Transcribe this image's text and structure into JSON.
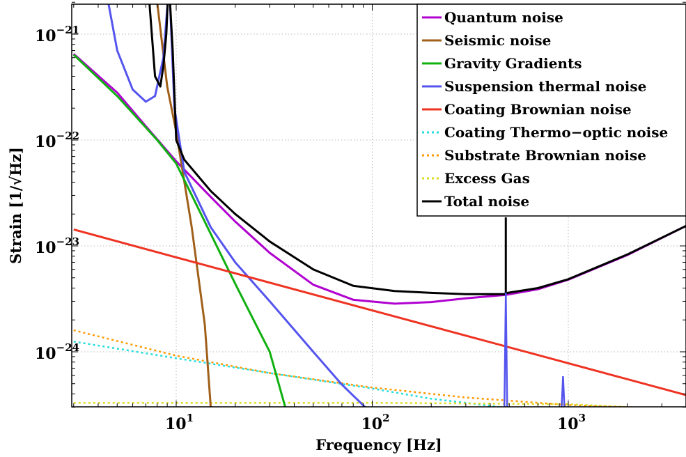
{
  "chart_data": {
    "type": "line",
    "xlabel": "Frequency [Hz]",
    "ylabel": "Strain [1/√Hz]",
    "xscale": "log",
    "yscale": "log",
    "xlim": [
      3,
      4000
    ],
    "ylim": [
      3e-25,
      2e-21
    ],
    "xticks": [
      {
        "value": 10,
        "base": "10",
        "exp": "1"
      },
      {
        "value": 100,
        "base": "10",
        "exp": "2"
      },
      {
        "value": 1000,
        "base": "10",
        "exp": "3"
      }
    ],
    "yticks": [
      {
        "value": 1e-24,
        "base": "10",
        "exp": "−24"
      },
      {
        "value": 1e-23,
        "base": "10",
        "exp": "−23"
      },
      {
        "value": 1e-22,
        "base": "10",
        "exp": "−22"
      },
      {
        "value": 1e-21,
        "base": "10",
        "exp": "−21"
      }
    ],
    "grid": true,
    "legend_position": "top-right",
    "series": [
      {
        "name": "Quantum noise",
        "color": "#b000d0",
        "style": "solid",
        "points": [
          [
            3,
            6.5e-22
          ],
          [
            5,
            2.8e-22
          ],
          [
            7,
            1.35e-22
          ],
          [
            10,
            6.3e-23
          ],
          [
            15,
            2.9e-23
          ],
          [
            20,
            1.7e-23
          ],
          [
            30,
            8.6e-24
          ],
          [
            50,
            4.3e-24
          ],
          [
            80,
            3.1e-24
          ],
          [
            130,
            2.85e-24
          ],
          [
            200,
            2.95e-24
          ],
          [
            300,
            3.2e-24
          ],
          [
            480,
            3.45e-24
          ],
          [
            700,
            3.9e-24
          ],
          [
            1000,
            4.8e-24
          ],
          [
            2000,
            8.2e-24
          ],
          [
            4000,
            1.55e-23
          ]
        ]
      },
      {
        "name": "Seismic noise",
        "color": "#a0601a",
        "style": "solid",
        "points": [
          [
            8,
            2e-21
          ],
          [
            9,
            3.2e-22
          ],
          [
            10,
            1.2e-22
          ],
          [
            12,
            1.5e-23
          ],
          [
            14,
            1.8e-24
          ],
          [
            15,
            3e-25
          ]
        ]
      },
      {
        "name": "Gravity Gradients",
        "color": "#10b010",
        "style": "solid",
        "points": [
          [
            3,
            6.4e-22
          ],
          [
            5,
            2.6e-22
          ],
          [
            8,
            1e-22
          ],
          [
            10,
            6e-23
          ],
          [
            15,
            1.3e-23
          ],
          [
            20,
            4.4e-24
          ],
          [
            30,
            1e-24
          ],
          [
            36,
            3e-25
          ]
        ]
      },
      {
        "name": "Suspension thermal noise",
        "color": "#5555ee",
        "style": "solid",
        "points": [
          [
            4.5,
            2e-21
          ],
          [
            5,
            7e-22
          ],
          [
            6,
            3e-22
          ],
          [
            7,
            2.3e-22
          ],
          [
            7.8,
            2.6e-22
          ],
          [
            8.6,
            6e-22
          ],
          [
            9.05,
            2e-21
          ],
          [
            9.3,
            2e-21
          ],
          [
            9.8,
            2e-22
          ],
          [
            11,
            5e-23
          ],
          [
            15,
            1.5e-23
          ],
          [
            20,
            7e-24
          ],
          [
            30,
            3e-24
          ],
          [
            50,
            1e-24
          ],
          [
            70,
            4.9e-25
          ],
          [
            92,
            3e-25
          ]
        ]
      },
      {
        "name": "Coating Brownian noise",
        "color": "#ee3322",
        "style": "solid",
        "points": [
          [
            3,
            1.43e-23
          ],
          [
            10,
            7.8e-24
          ],
          [
            100,
            2.46e-24
          ],
          [
            1000,
            7.8e-25
          ],
          [
            4000,
            3.9e-25
          ]
        ]
      },
      {
        "name": "Coating Thermo−optic noise",
        "color": "#22dddd",
        "style": "dotted",
        "points": [
          [
            3,
            1.25e-24
          ],
          [
            10,
            8.7e-25
          ],
          [
            30,
            6.3e-25
          ],
          [
            100,
            4.5e-25
          ],
          [
            200,
            3.6e-25
          ],
          [
            300,
            3.3e-25
          ],
          [
            450,
            3e-25
          ]
        ]
      },
      {
        "name": "Substrate Brownian noise",
        "color": "#ff9900",
        "style": "dotted",
        "points": [
          [
            3,
            1.6e-24
          ],
          [
            10,
            9.2e-25
          ],
          [
            30,
            6.3e-25
          ],
          [
            100,
            4.6e-25
          ],
          [
            300,
            3.7e-25
          ],
          [
            1000,
            3.15e-25
          ],
          [
            2500,
            2.95e-25
          ]
        ]
      },
      {
        "name": "Excess Gas",
        "color": "#dddd22",
        "style": "dotted",
        "points": [
          [
            3,
            3.3e-25
          ],
          [
            100,
            3.3e-25
          ],
          [
            1000,
            3.2e-25
          ],
          [
            2500,
            2.95e-25
          ]
        ]
      },
      {
        "name": "Total noise",
        "color": "#000000",
        "style": "solid",
        "points": [
          [
            7.3,
            2e-21
          ],
          [
            7.8,
            4e-22
          ],
          [
            8.3,
            3.2e-22
          ],
          [
            8.6,
            5e-22
          ],
          [
            8.9,
            1e-21
          ],
          [
            9.05,
            2e-21
          ],
          [
            9.3,
            2e-21
          ],
          [
            9.6,
            7e-22
          ],
          [
            10,
            1e-22
          ],
          [
            11,
            6.5e-23
          ],
          [
            15,
            3.3e-23
          ],
          [
            20,
            2e-23
          ],
          [
            30,
            1.1e-23
          ],
          [
            50,
            6e-24
          ],
          [
            80,
            4.2e-24
          ],
          [
            130,
            3.75e-24
          ],
          [
            200,
            3.6e-24
          ],
          [
            300,
            3.5e-24
          ],
          [
            470,
            3.5e-24
          ],
          [
            490,
            3.6e-24
          ],
          [
            700,
            4e-24
          ],
          [
            1000,
            4.85e-24
          ],
          [
            2000,
            8.3e-24
          ],
          [
            4000,
            1.55e-23
          ]
        ]
      }
    ]
  }
}
